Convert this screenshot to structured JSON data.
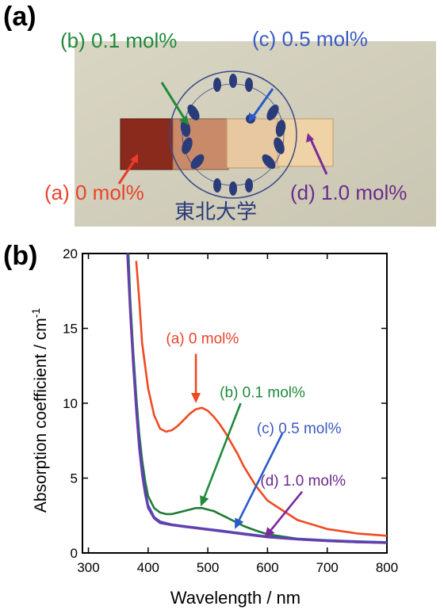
{
  "panel_labels": {
    "a": "(a)",
    "b": "(b)"
  },
  "photo": {
    "logo_text": "東北大学",
    "labels": [
      {
        "text": "(a) 0 mol%",
        "color": "#e8442a"
      },
      {
        "text": "(b) 0.1 mol%",
        "color": "#1f8a3a"
      },
      {
        "text": "(c) 0.5 mol%",
        "color": "#3b5bc4"
      },
      {
        "text": "(d) 1.0 mol%",
        "color": "#6b2a8c"
      }
    ]
  },
  "chart_data": {
    "type": "line",
    "xlabel": "Wavelength / nm",
    "ylabel": "Absorption coefficient / cm",
    "ylabel_sup": "-1",
    "xlim": [
      290,
      800
    ],
    "ylim": [
      0,
      20
    ],
    "xticks": [
      300,
      400,
      500,
      600,
      700,
      800
    ],
    "yticks": [
      0,
      5,
      10,
      15,
      20
    ],
    "series": [
      {
        "name": "(a) 0 mol%",
        "color": "#ef4a22",
        "x": [
          380,
          385,
          390,
          400,
          410,
          420,
          430,
          440,
          450,
          460,
          470,
          480,
          490,
          500,
          510,
          520,
          530,
          540,
          550,
          560,
          580,
          600,
          650,
          700,
          750,
          800
        ],
        "y": [
          19.5,
          17,
          14,
          11,
          9.2,
          8.3,
          8.1,
          8.2,
          8.5,
          8.9,
          9.3,
          9.6,
          9.7,
          9.5,
          9.1,
          8.6,
          8.0,
          7.3,
          6.6,
          5.8,
          4.5,
          3.5,
          2.2,
          1.6,
          1.3,
          1.15
        ]
      },
      {
        "name": "(b) 0.1 mol%",
        "color": "#1f7a35",
        "x": [
          367,
          370,
          375,
          380,
          385,
          390,
          395,
          400,
          410,
          420,
          430,
          440,
          450,
          460,
          470,
          480,
          490,
          500,
          510,
          520,
          530,
          540,
          550,
          560,
          580,
          600,
          650,
          700,
          750,
          800
        ],
        "y": [
          20,
          17,
          13.5,
          10.5,
          8.0,
          6.2,
          4.8,
          3.8,
          3.0,
          2.7,
          2.6,
          2.6,
          2.7,
          2.8,
          2.9,
          3.0,
          3.0,
          2.9,
          2.8,
          2.6,
          2.4,
          2.2,
          2.0,
          1.8,
          1.5,
          1.25,
          0.95,
          0.8,
          0.72,
          0.68
        ]
      },
      {
        "name": "(c) 0.5 mol%",
        "color": "#3f4fc4",
        "x": [
          366,
          370,
          375,
          380,
          385,
          390,
          395,
          400,
          410,
          420,
          440,
          460,
          480,
          500,
          520,
          540,
          560,
          580,
          600,
          650,
          700,
          750,
          800
        ],
        "y": [
          20,
          16.5,
          13,
          10,
          7.5,
          5.6,
          4.2,
          3.2,
          2.4,
          2.1,
          1.9,
          1.8,
          1.7,
          1.6,
          1.5,
          1.4,
          1.3,
          1.2,
          1.1,
          0.95,
          0.85,
          0.78,
          0.72
        ]
      },
      {
        "name": "(d) 1.0 mol%",
        "color": "#6a3da8",
        "x": [
          365,
          370,
          375,
          380,
          385,
          390,
          395,
          400,
          410,
          420,
          440,
          460,
          480,
          500,
          520,
          540,
          560,
          580,
          600,
          650,
          700,
          750,
          800
        ],
        "y": [
          20,
          16,
          12.5,
          9.5,
          7.0,
          5.2,
          3.9,
          3.0,
          2.3,
          2.0,
          1.85,
          1.75,
          1.65,
          1.55,
          1.45,
          1.35,
          1.25,
          1.15,
          1.05,
          0.9,
          0.8,
          0.72,
          0.66
        ]
      }
    ],
    "annotations": [
      {
        "text": "(a) 0 mol%",
        "color": "#e8442a"
      },
      {
        "text": "(b) 0.1 mol%",
        "color": "#1f8a3a"
      },
      {
        "text": "(c) 0.5 mol%",
        "color": "#3b5bc4"
      },
      {
        "text": "(d) 1.0 mol%",
        "color": "#6b2a8c"
      }
    ]
  }
}
